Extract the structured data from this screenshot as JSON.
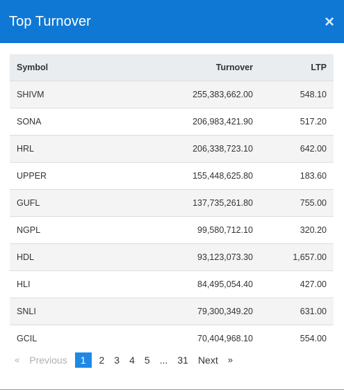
{
  "modal": {
    "title": "Top Turnover",
    "close_glyph": "×"
  },
  "table": {
    "headers": {
      "symbol": "Symbol",
      "turnover": "Turnover",
      "ltp": "LTP"
    },
    "rows": [
      {
        "symbol": "SHIVM",
        "turnover": "255,383,662.00",
        "ltp": "548.10"
      },
      {
        "symbol": "SONA",
        "turnover": "206,983,421.90",
        "ltp": "517.20"
      },
      {
        "symbol": "HRL",
        "turnover": "206,338,723.10",
        "ltp": "642.00"
      },
      {
        "symbol": "UPPER",
        "turnover": "155,448,625.80",
        "ltp": "183.60"
      },
      {
        "symbol": "GUFL",
        "turnover": "137,735,261.80",
        "ltp": "755.00"
      },
      {
        "symbol": "NGPL",
        "turnover": "99,580,712.10",
        "ltp": "320.20"
      },
      {
        "symbol": "HDL",
        "turnover": "93,123,073.30",
        "ltp": "1,657.00"
      },
      {
        "symbol": "HLI",
        "turnover": "84,495,054.40",
        "ltp": "427.00"
      },
      {
        "symbol": "SNLI",
        "turnover": "79,300,349.20",
        "ltp": "631.00"
      },
      {
        "symbol": "GCIL",
        "turnover": "70,404,968.10",
        "ltp": "554.00"
      }
    ]
  },
  "pagination": {
    "prev_arrow": "«",
    "prev_label": "Previous",
    "pages": [
      "1",
      "2",
      "3",
      "4",
      "5"
    ],
    "active_page": "1",
    "ellipsis": "...",
    "last_page": "31",
    "next_label": "Next",
    "next_arrow": "»"
  },
  "colors": {
    "header_bg": "#0f78d4",
    "active_page_bg": "#1e88e5",
    "table_header_bg": "#e9edf0"
  }
}
